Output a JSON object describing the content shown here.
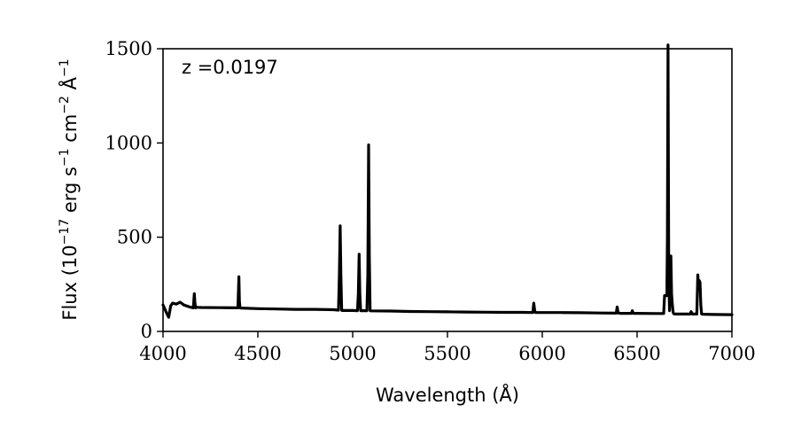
{
  "chart_data": {
    "type": "line",
    "title": "",
    "annotation": "z =0.0197",
    "xlabel": "Wavelength (Å)",
    "ylabel": {
      "base": "Flux (10",
      "exp1": "−17",
      "mid1": " erg s",
      "exp2": "−1",
      "mid2": " cm",
      "exp3": "−2",
      "mid3": " Å",
      "exp4": "−1"
    },
    "xlim": [
      4000,
      7000
    ],
    "ylim": [
      0,
      1500
    ],
    "xticks": [
      "4000",
      "4500",
      "5000",
      "5500",
      "6000",
      "6500",
      "7000"
    ],
    "xtick_values": [
      4000,
      4500,
      5000,
      5500,
      6000,
      6500,
      7000
    ],
    "yticks": [
      "0",
      "500",
      "1000",
      "1500"
    ],
    "ytick_values": [
      0,
      500,
      1000,
      1500
    ],
    "grid": false,
    "series": [
      {
        "color": "#000000",
        "x": [
          4000,
          4020,
          4030,
          4040,
          4050,
          4070,
          4090,
          4110,
          4140,
          4160,
          4165,
          4168,
          4172,
          4175,
          4180,
          4200,
          4300,
          4395,
          4400,
          4403,
          4406,
          4410,
          4500,
          4600,
          4700,
          4800,
          4900,
          4925,
          4930,
          4934,
          4938,
          4942,
          4945,
          5000,
          5025,
          5030,
          5034,
          5038,
          5042,
          5045,
          5075,
          5080,
          5084,
          5088,
          5092,
          5095,
          5200,
          5300,
          5400,
          5500,
          5600,
          5700,
          5800,
          5900,
          5950,
          5955,
          5960,
          5965,
          5975,
          6000,
          6100,
          6200,
          6300,
          6390,
          6395,
          6400,
          6405,
          6415,
          6470,
          6475,
          6480,
          6500,
          6600,
          6640,
          6645,
          6652,
          6657,
          6660,
          6663,
          6667,
          6671,
          6675,
          6678,
          6682,
          6686,
          6690,
          6694,
          6700,
          6780,
          6785,
          6790,
          6800,
          6810,
          6815,
          6820,
          6824,
          6828,
          6832,
          6836,
          6840,
          6850,
          6900,
          7000
        ],
        "y": [
          140,
          95,
          75,
          135,
          150,
          145,
          155,
          140,
          130,
          125,
          200,
          150,
          125,
          130,
          128,
          127,
          126,
          125,
          290,
          160,
          125,
          124,
          121,
          119,
          117,
          117,
          115,
          113,
          300,
          560,
          300,
          112,
          111,
          111,
          110,
          200,
          410,
          200,
          110,
          110,
          110,
          300,
          990,
          400,
          110,
          109,
          108,
          106,
          105,
          104,
          103,
          102,
          101,
          101,
          100,
          150,
          110,
          100,
          100,
          100,
          100,
          99,
          98,
          97,
          130,
          98,
          97,
          96,
          96,
          110,
          96,
          96,
          95,
          95,
          190,
          190,
          190,
          500,
          1520,
          300,
          110,
          380,
          400,
          200,
          140,
          100,
          93,
          92,
          92,
          105,
          92,
          92,
          92,
          92,
          300,
          240,
          270,
          260,
          140,
          92,
          91,
          90,
          89
        ]
      }
    ]
  }
}
